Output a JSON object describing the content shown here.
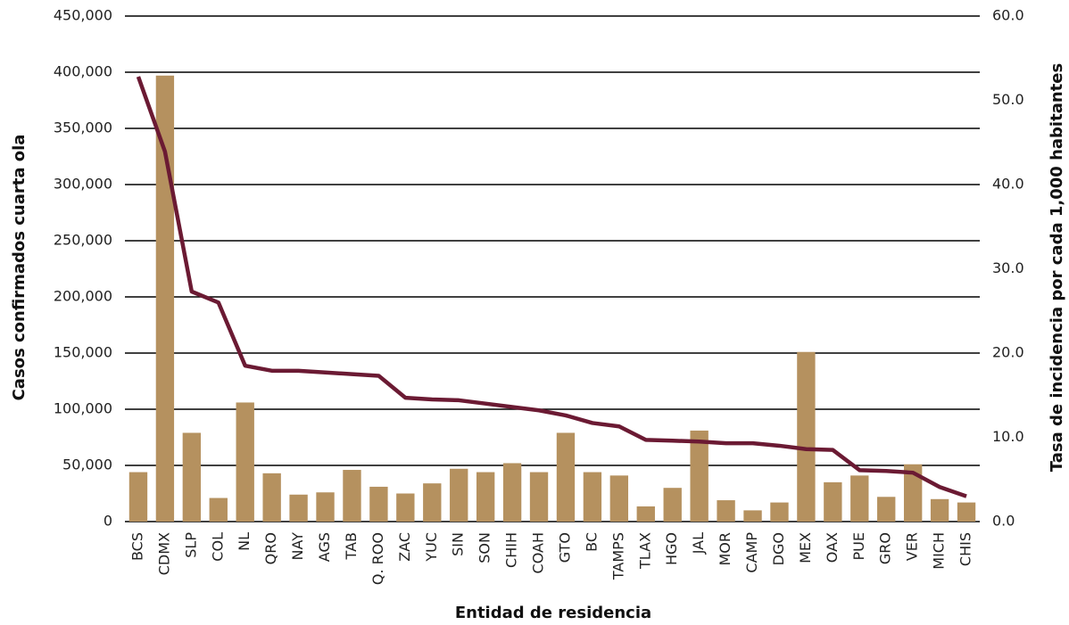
{
  "chart_data": {
    "type": "bar-line",
    "x_label": "Entidad de residencia",
    "y_label": "Casos confirmados cuarta ola",
    "y2_label": "Tasa de incidencia por cada 1,000 habitantes",
    "categories": [
      "BCS",
      "CDMX",
      "SLP",
      "COL",
      "NL",
      "QRO",
      "NAY",
      "AGS",
      "TAB",
      "Q. ROO",
      "ZAC",
      "YUC",
      "SIN",
      "SON",
      "CHIH",
      "COAH",
      "GTO",
      "BC",
      "TAMPS",
      "TLAX",
      "HGO",
      "JAL",
      "MOR",
      "CAMP",
      "DGO",
      "MEX",
      "OAX",
      "PUE",
      "GRO",
      "VER",
      "MICH",
      "CHIS"
    ],
    "series": [
      {
        "type": "bar",
        "color": "#b5915f",
        "values": [
          44000,
          397000,
          79000,
          21000,
          106000,
          43000,
          24000,
          26000,
          46000,
          31000,
          25000,
          34000,
          47000,
          44000,
          52000,
          44000,
          79000,
          44000,
          41000,
          13500,
          30000,
          81000,
          19000,
          10000,
          17000,
          151000,
          35000,
          41000,
          22000,
          51000,
          20000,
          17000
        ]
      },
      {
        "type": "line",
        "color": "#6b1a33",
        "axis": "y2",
        "values": [
          52.8,
          43.9,
          27.3,
          26.0,
          18.5,
          17.9,
          17.9,
          17.7,
          17.5,
          17.3,
          14.7,
          14.5,
          14.4,
          14.0,
          13.6,
          13.2,
          12.6,
          11.7,
          11.3,
          9.7,
          9.6,
          9.5,
          9.3,
          9.3,
          9.0,
          8.6,
          8.5,
          6.1,
          6.0,
          5.8,
          4.1,
          3.0
        ]
      }
    ],
    "ylim": [
      0,
      450000
    ],
    "yticks": [
      0,
      {
        "value": 50000,
        "label": "50,000"
      },
      {
        "value": 100000,
        "label": "100,000"
      },
      {
        "value": 150000,
        "label": "150,000"
      },
      {
        "value": 200000,
        "label": "200,000"
      },
      {
        "value": 250000,
        "label": "250,000"
      },
      {
        "value": 300000,
        "label": "300,000"
      },
      {
        "value": 350000,
        "label": "350,000"
      },
      {
        "value": 400000,
        "label": "400,000"
      },
      {
        "value": 450000,
        "label": "450,000"
      }
    ],
    "y2lim": [
      0,
      60
    ],
    "y2ticks": [
      {
        "value": 0,
        "label": "0.0"
      },
      {
        "value": 10,
        "label": "10.0"
      },
      {
        "value": 20,
        "label": "20.0"
      },
      {
        "value": 30,
        "label": "30.0"
      },
      {
        "value": 40,
        "label": "40.0"
      },
      {
        "value": 50,
        "label": "50.0"
      },
      {
        "value": 60,
        "label": "60.0"
      }
    ],
    "grid": true
  }
}
